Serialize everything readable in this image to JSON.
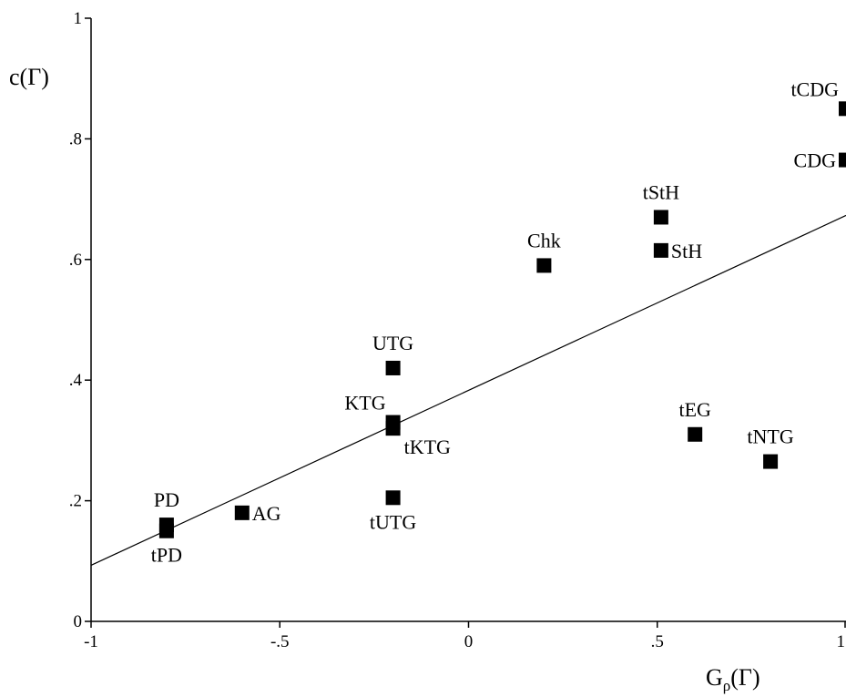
{
  "chart_data": {
    "type": "scatter",
    "xlabel": "G",
    "xlabel_sub": "ρ",
    "xlabel_suffix": "(Γ)",
    "ylabel": "c(Γ)",
    "xlim": [
      -1,
      1
    ],
    "ylim": [
      0,
      1
    ],
    "grid": false,
    "x_ticks": [
      {
        "value": -1,
        "label": "-1"
      },
      {
        "value": -0.5,
        "label": "-.5"
      },
      {
        "value": 0,
        "label": "0"
      },
      {
        "value": 0.5,
        "label": ".5"
      },
      {
        "value": 1,
        "label": "1"
      }
    ],
    "y_ticks": [
      {
        "value": 0,
        "label": "0"
      },
      {
        "value": 0.2,
        "label": ".2"
      },
      {
        "value": 0.4,
        "label": ".4"
      },
      {
        "value": 0.6,
        "label": ".6"
      },
      {
        "value": 0.8,
        "label": ".8"
      },
      {
        "value": 1,
        "label": "1"
      }
    ],
    "points": [
      {
        "label": "PD",
        "x": -0.8,
        "y": 0.16,
        "label_pos": "above"
      },
      {
        "label": "tPD",
        "x": -0.8,
        "y": 0.15,
        "label_pos": "below"
      },
      {
        "label": "AG",
        "x": -0.6,
        "y": 0.18,
        "label_pos": "right"
      },
      {
        "label": "KTG",
        "x": -0.2,
        "y": 0.33,
        "label_pos": "above-left"
      },
      {
        "label": "tKTG",
        "x": -0.2,
        "y": 0.32,
        "label_pos": "below-right"
      },
      {
        "label": "UTG",
        "x": -0.2,
        "y": 0.42,
        "label_pos": "above"
      },
      {
        "label": "tUTG",
        "x": -0.2,
        "y": 0.205,
        "label_pos": "below"
      },
      {
        "label": "Chk",
        "x": 0.2,
        "y": 0.59,
        "label_pos": "above"
      },
      {
        "label": "tStH",
        "x": 0.51,
        "y": 0.67,
        "label_pos": "above"
      },
      {
        "label": "StH",
        "x": 0.51,
        "y": 0.615,
        "label_pos": "right"
      },
      {
        "label": "tEG",
        "x": 0.6,
        "y": 0.31,
        "label_pos": "above"
      },
      {
        "label": "tNTG",
        "x": 0.8,
        "y": 0.265,
        "label_pos": "above"
      },
      {
        "label": "tCDG",
        "x": 1.0,
        "y": 0.85,
        "label_pos": "above-left"
      },
      {
        "label": "CDG",
        "x": 1.0,
        "y": 0.765,
        "label_pos": "left"
      }
    ],
    "fit_line": {
      "slope": 0.29,
      "intercept": 0.383,
      "x_range": [
        -1,
        1
      ]
    }
  }
}
